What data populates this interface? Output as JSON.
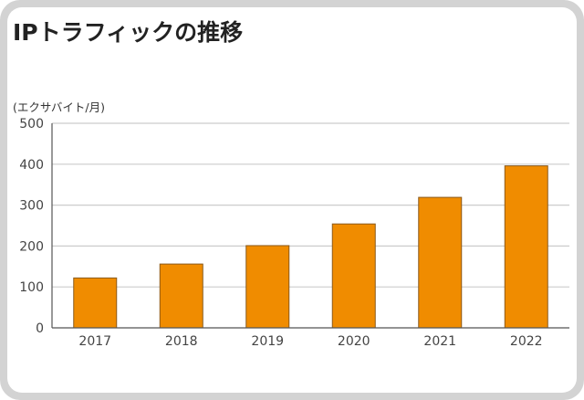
{
  "title": "IPトラフィックの推移",
  "chart_data": {
    "type": "bar",
    "title": "IPトラフィックの推移",
    "ylabel": "(エクサバイト/月)",
    "xlabel": "",
    "categories": [
      "2017",
      "2018",
      "2019",
      "2020",
      "2021",
      "2022"
    ],
    "values": [
      122,
      156,
      201,
      254,
      319,
      396
    ],
    "ylim": [
      0,
      500
    ],
    "yticks": [
      "0",
      "100",
      "200",
      "300",
      "400",
      "500"
    ],
    "grid": true,
    "legend": "none"
  },
  "colors": {
    "bar_fill": "#f08c00",
    "bar_stroke": "#8a5a1c",
    "grid": "#cccccc",
    "axis": "#555555",
    "frame": "#d3d3d3"
  }
}
